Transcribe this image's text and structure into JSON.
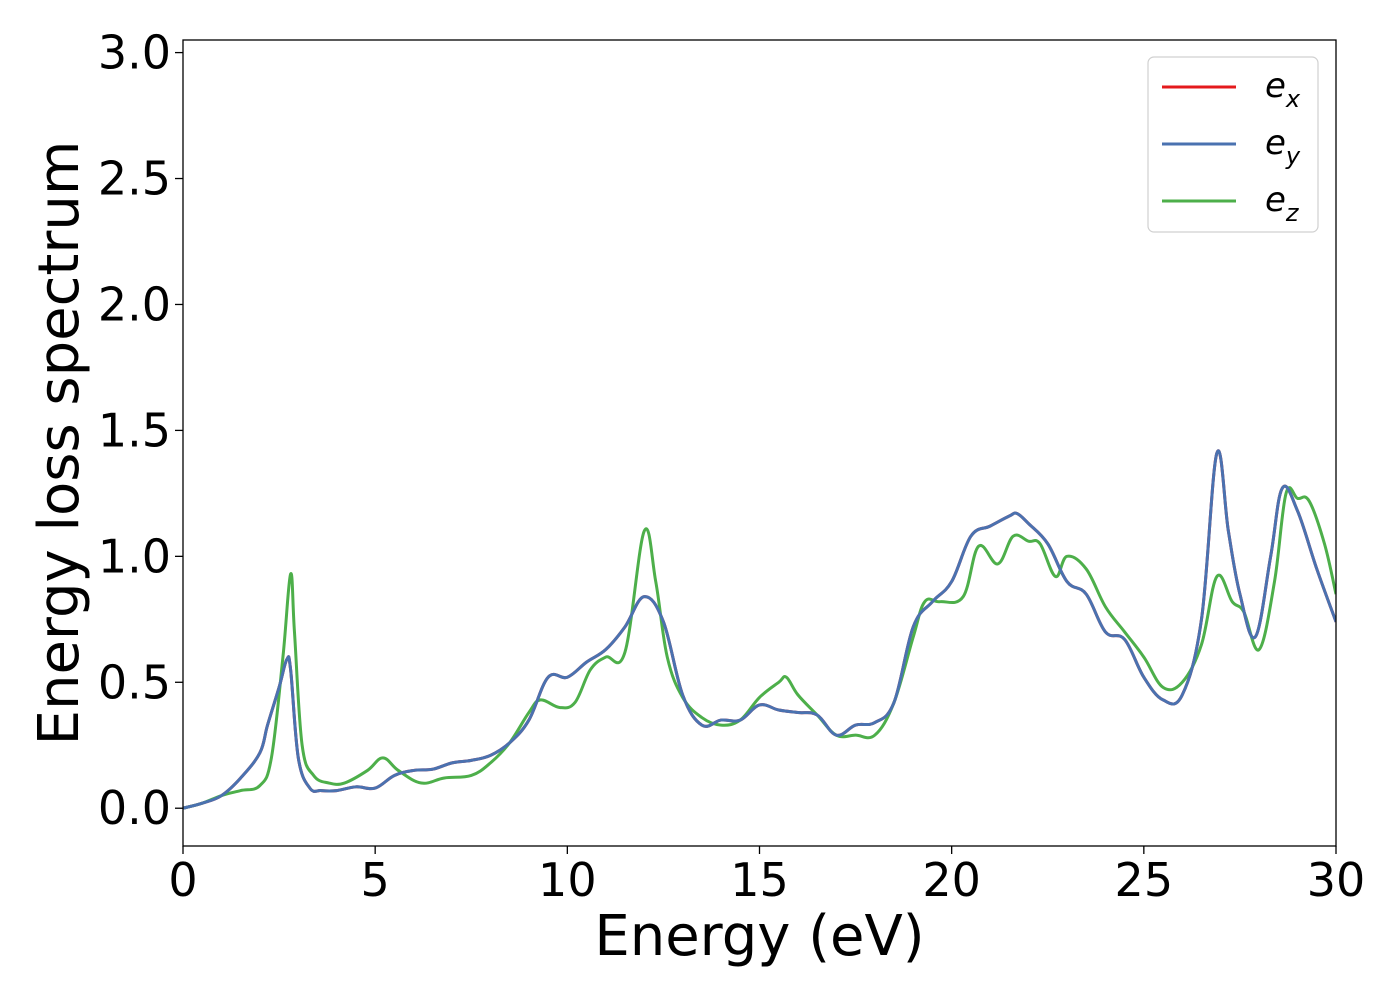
{
  "chart_data": {
    "type": "line",
    "xlabel": "Energy (eV)",
    "ylabel": "Energy loss spectrum",
    "xlim": [
      0,
      30
    ],
    "ylim": [
      -0.15,
      3.05
    ],
    "xticks": [
      0,
      5,
      10,
      15,
      20,
      25,
      30
    ],
    "yticks": [
      0.0,
      0.5,
      1.0,
      1.5,
      2.0,
      2.5,
      3.0
    ],
    "xtick_labels": [
      "0",
      "5",
      "10",
      "15",
      "20",
      "25",
      "30"
    ],
    "ytick_labels": [
      "0.0",
      "0.5",
      "1.0",
      "1.5",
      "2.0",
      "2.5",
      "3.0"
    ],
    "grid": false,
    "legend_position": "top-right",
    "series": [
      {
        "name": "e_x",
        "label_base": "e",
        "label_sub": "x",
        "color": "#e41a1c",
        "x": [
          0,
          0.5,
          1,
          1.5,
          2,
          2.2,
          2.5,
          2.7,
          2.8,
          3,
          3.3,
          3.6,
          4,
          4.5,
          5,
          5.5,
          6,
          6.5,
          7,
          7.5,
          8,
          8.5,
          9,
          9.5,
          10,
          10.5,
          11,
          11.5,
          12,
          12.5,
          13,
          13.5,
          14,
          14.5,
          15,
          15.5,
          16,
          16.5,
          17,
          17.5,
          18,
          18.5,
          19,
          19.5,
          20,
          20.5,
          21,
          21.5,
          21.7,
          22,
          22.5,
          23,
          23.5,
          24,
          24.5,
          25,
          25.5,
          26,
          26.5,
          26.9,
          27.2,
          27.5,
          27.9,
          28.3,
          28.6,
          29,
          29.5,
          30
        ],
        "y": [
          0,
          0.02,
          0.05,
          0.12,
          0.22,
          0.33,
          0.48,
          0.59,
          0.55,
          0.2,
          0.08,
          0.07,
          0.07,
          0.085,
          0.08,
          0.13,
          0.15,
          0.155,
          0.18,
          0.19,
          0.21,
          0.26,
          0.35,
          0.52,
          0.52,
          0.58,
          0.63,
          0.72,
          0.84,
          0.74,
          0.45,
          0.33,
          0.35,
          0.35,
          0.41,
          0.39,
          0.38,
          0.37,
          0.29,
          0.33,
          0.34,
          0.42,
          0.72,
          0.82,
          0.9,
          1.08,
          1.12,
          1.16,
          1.17,
          1.13,
          1.05,
          0.9,
          0.85,
          0.7,
          0.67,
          0.52,
          0.43,
          0.45,
          0.75,
          1.41,
          1.1,
          0.85,
          0.68,
          1.0,
          1.27,
          1.18,
          0.95,
          0.74
        ]
      },
      {
        "name": "e_y",
        "label_base": "e",
        "label_sub": "y",
        "color": "#4a72b0",
        "x": [
          0,
          0.5,
          1,
          1.5,
          2,
          2.2,
          2.5,
          2.7,
          2.8,
          3,
          3.3,
          3.6,
          4,
          4.5,
          5,
          5.5,
          6,
          6.5,
          7,
          7.5,
          8,
          8.5,
          9,
          9.5,
          10,
          10.5,
          11,
          11.5,
          12,
          12.5,
          13,
          13.5,
          14,
          14.5,
          15,
          15.5,
          16,
          16.5,
          17,
          17.5,
          18,
          18.5,
          19,
          19.5,
          20,
          20.5,
          21,
          21.5,
          21.7,
          22,
          22.5,
          23,
          23.5,
          24,
          24.5,
          25,
          25.5,
          26,
          26.5,
          26.9,
          27.2,
          27.5,
          27.9,
          28.3,
          28.6,
          29,
          29.5,
          30
        ],
        "y": [
          0,
          0.02,
          0.05,
          0.12,
          0.22,
          0.33,
          0.48,
          0.59,
          0.55,
          0.2,
          0.08,
          0.07,
          0.07,
          0.085,
          0.08,
          0.13,
          0.15,
          0.155,
          0.18,
          0.19,
          0.21,
          0.26,
          0.35,
          0.52,
          0.52,
          0.58,
          0.63,
          0.72,
          0.84,
          0.74,
          0.45,
          0.33,
          0.35,
          0.35,
          0.41,
          0.39,
          0.38,
          0.37,
          0.29,
          0.33,
          0.34,
          0.42,
          0.72,
          0.82,
          0.9,
          1.08,
          1.12,
          1.16,
          1.17,
          1.13,
          1.05,
          0.9,
          0.85,
          0.7,
          0.67,
          0.52,
          0.43,
          0.45,
          0.75,
          1.41,
          1.1,
          0.85,
          0.68,
          1.0,
          1.27,
          1.18,
          0.95,
          0.74
        ]
      },
      {
        "name": "e_z",
        "label_base": "e",
        "label_sub": "z",
        "color": "#4daf4a",
        "x": [
          0,
          0.5,
          1,
          1.5,
          2,
          2.3,
          2.6,
          2.8,
          2.9,
          3.1,
          3.4,
          3.8,
          4.2,
          4.8,
          5.2,
          5.6,
          6.2,
          6.8,
          7.5,
          8,
          8.5,
          9,
          9.3,
          9.8,
          10.2,
          10.6,
          11,
          11.5,
          12,
          12.3,
          12.6,
          13,
          13.5,
          14,
          14.5,
          15,
          15.5,
          15.7,
          16,
          16.5,
          17,
          17.5,
          18,
          18.5,
          19,
          19.3,
          19.7,
          20.3,
          20.7,
          21.2,
          21.6,
          22,
          22.3,
          22.7,
          23,
          23.5,
          24,
          24.5,
          25,
          25.5,
          26,
          26.5,
          26.9,
          27.3,
          27.6,
          28,
          28.4,
          28.7,
          29,
          29.3,
          29.7,
          30
        ],
        "y": [
          0,
          0.02,
          0.05,
          0.07,
          0.09,
          0.2,
          0.6,
          0.93,
          0.7,
          0.25,
          0.13,
          0.1,
          0.1,
          0.15,
          0.2,
          0.15,
          0.1,
          0.12,
          0.13,
          0.18,
          0.26,
          0.38,
          0.43,
          0.4,
          0.42,
          0.55,
          0.6,
          0.62,
          1.1,
          0.9,
          0.6,
          0.44,
          0.36,
          0.33,
          0.35,
          0.44,
          0.5,
          0.52,
          0.45,
          0.37,
          0.29,
          0.29,
          0.29,
          0.42,
          0.68,
          0.82,
          0.82,
          0.84,
          1.04,
          0.97,
          1.08,
          1.06,
          1.05,
          0.92,
          1.0,
          0.95,
          0.8,
          0.7,
          0.6,
          0.48,
          0.5,
          0.65,
          0.92,
          0.82,
          0.78,
          0.63,
          0.9,
          1.25,
          1.23,
          1.22,
          1.05,
          0.85
        ]
      }
    ]
  }
}
